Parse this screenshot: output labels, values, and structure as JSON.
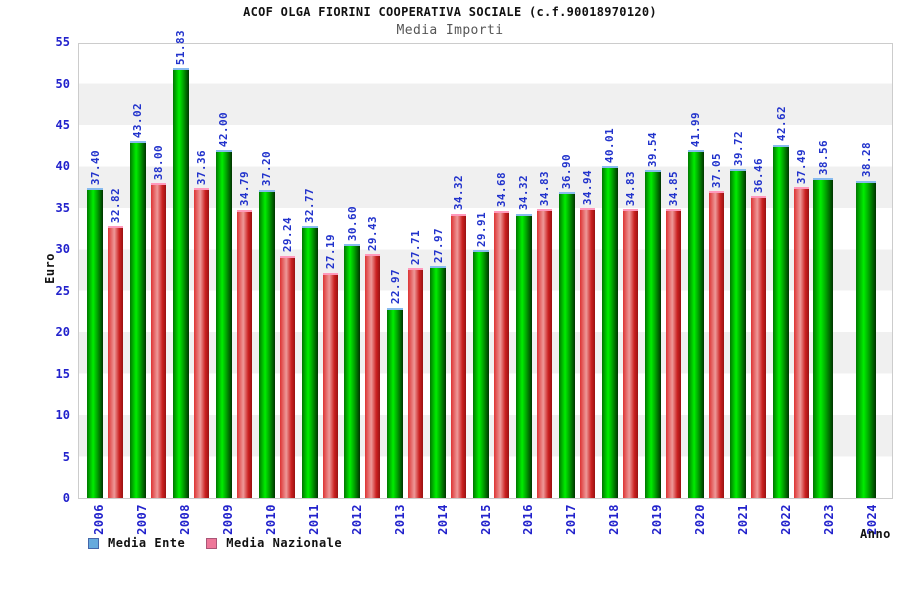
{
  "chart_data": {
    "type": "bar",
    "title": "ACOF OLGA FIORINI COOPERATIVA SOCIALE (c.f.90018970120)",
    "subtitle": "Media Importi",
    "xlabel": "Anno",
    "ylabel": "Euro",
    "ylim": [
      0,
      55
    ],
    "ytick_step": 5,
    "yticks": [
      0,
      5,
      10,
      15,
      20,
      25,
      30,
      35,
      40,
      45,
      50,
      55
    ],
    "grid": "alternating-horizontal-bands",
    "legend_position": "bottom-left",
    "categories": [
      "2006",
      "2007",
      "2008",
      "2009",
      "2010",
      "2011",
      "2012",
      "2013",
      "2014",
      "2015",
      "2016",
      "2017",
      "2018",
      "2019",
      "2020",
      "2021",
      "2022",
      "2023",
      "2024"
    ],
    "series": [
      {
        "name": "Media Ente",
        "bar_style": "green-cylinder",
        "legend_swatch_color": "#66aadd",
        "legend_swatch_border": "#4466aa",
        "values": [
          37.4,
          43.02,
          51.83,
          42.0,
          37.2,
          32.77,
          30.6,
          22.97,
          27.97,
          29.91,
          34.32,
          36.9,
          40.01,
          39.54,
          41.99,
          39.72,
          42.62,
          38.56,
          38.28
        ],
        "labels": [
          "37.40",
          "43.02",
          "51.83",
          "42.00",
          "37.20",
          "32.77",
          "30.60",
          "22.97",
          "27.97",
          "29.91",
          "34.32",
          "36.90",
          "40.01",
          "39.54",
          "41.99",
          "39.72",
          "42.62",
          "38.56",
          "38.28"
        ]
      },
      {
        "name": "Media Nazionale",
        "bar_style": "red-cylinder",
        "legend_swatch_color": "#ee7799",
        "legend_swatch_border": "#aa5577",
        "values": [
          32.82,
          38.0,
          37.36,
          34.79,
          29.24,
          27.19,
          29.43,
          27.71,
          34.32,
          34.68,
          34.83,
          34.94,
          34.83,
          34.85,
          37.05,
          36.46,
          37.49,
          null,
          null
        ],
        "labels": [
          "32.82",
          "38.00",
          "37.36",
          "34.79",
          "29.24",
          "27.19",
          "29.43",
          "27.71",
          "34.32",
          "34.68",
          "34.83",
          "34.94",
          "34.83",
          "34.85",
          "37.05",
          "36.46",
          "37.49",
          null,
          null
        ]
      }
    ]
  },
  "colors": {
    "axis_text": "#2222cc",
    "value_label": "#2233cc",
    "band_gray": "#f0f0f0",
    "plot_border": "#cccccc",
    "green_bar_cap": "#88bbee",
    "red_bar_cap": "#ff99bb"
  }
}
